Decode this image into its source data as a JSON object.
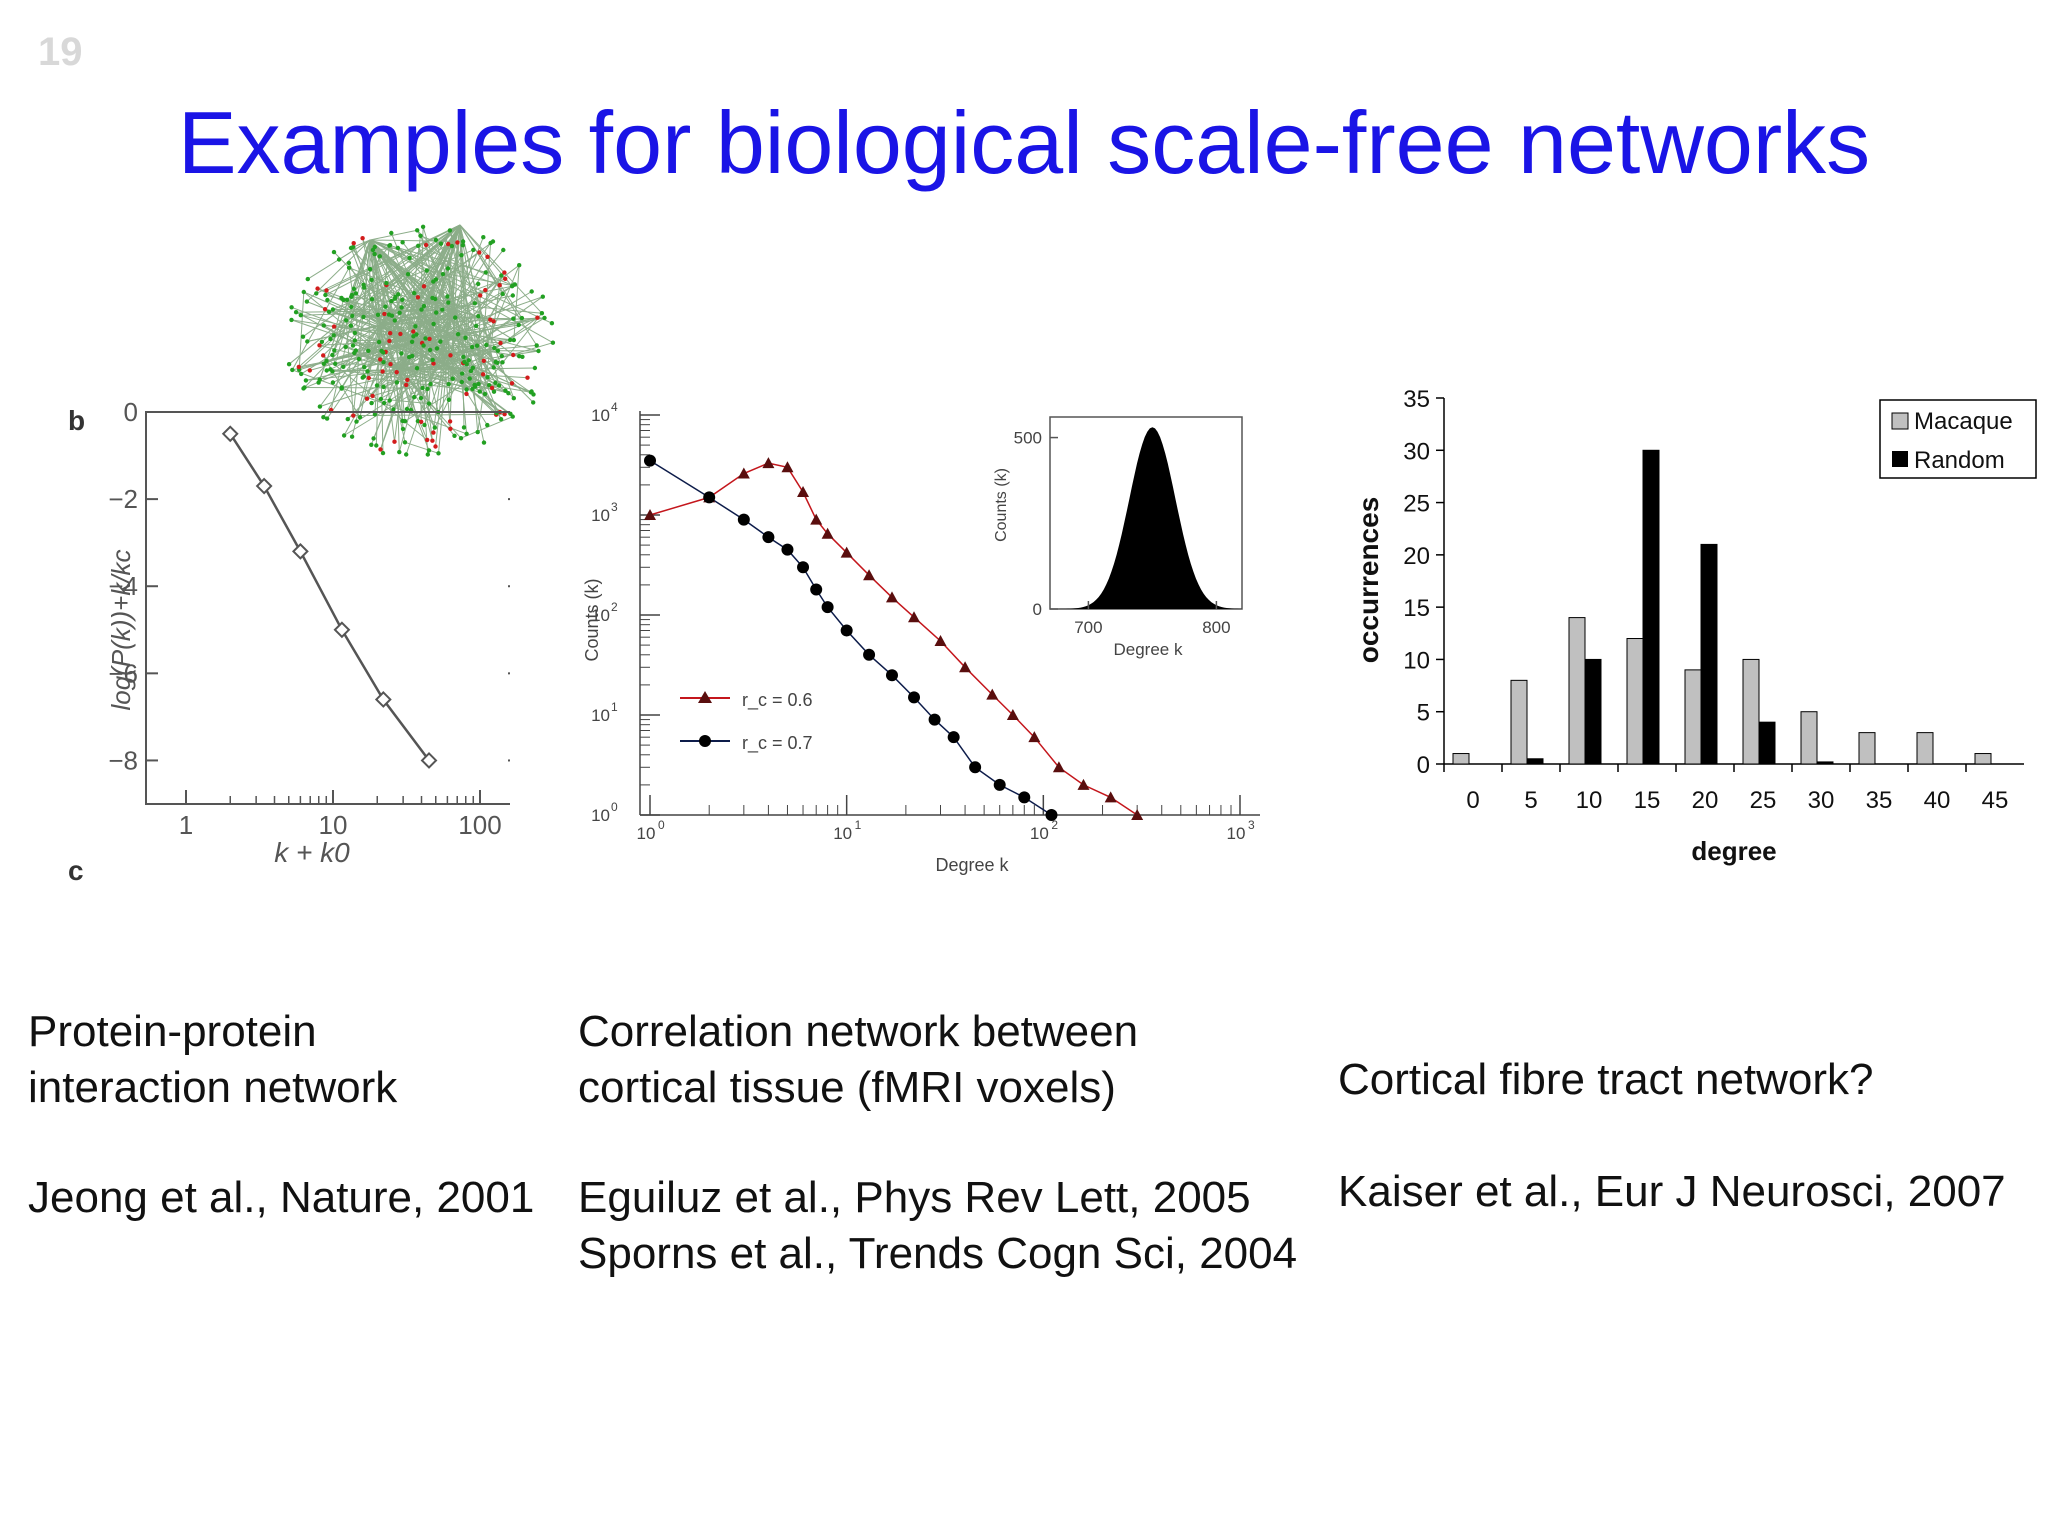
{
  "slide": {
    "number": "19",
    "title": "Examples for biological scale-free networks"
  },
  "colors": {
    "title": "#1a14e6",
    "red_series": "#c4161c",
    "blue_series": "#0d1c4a"
  },
  "captions": {
    "left": {
      "line1": "Protein-protein",
      "line2": "interaction network",
      "ref": "Jeong et al., Nature, 2001"
    },
    "middle": {
      "line1": "Correlation network between",
      "line2": "cortical tissue (fMRI voxels)",
      "ref1": "Eguiluz et al., Phys Rev Lett, 2005",
      "ref2": "Sporns et al., Trends Cogn Sci, 2004"
    },
    "right": {
      "line1": "Cortical fibre tract network?",
      "ref": "Kaiser et al., Eur J Neurosci, 2007"
    }
  },
  "chart_data": [
    {
      "type": "line",
      "panel_labels": [
        "b",
        "c"
      ],
      "xlabel": "k + k0",
      "ylabel": "log(P(k))+k/kc",
      "xscale": "log",
      "x_ticks": [
        "1",
        "10",
        "100"
      ],
      "y_ticks": [
        "0",
        "−2",
        "−4",
        "−6",
        "−8"
      ],
      "xlim": [
        1,
        100
      ],
      "ylim": [
        -9,
        0
      ],
      "points": [
        {
          "x": 2,
          "y": -0.5
        },
        {
          "x": 3.4,
          "y": -1.7
        },
        {
          "x": 6,
          "y": -3.2
        },
        {
          "x": 11.5,
          "y": -5.0
        },
        {
          "x": 22,
          "y": -6.6
        },
        {
          "x": 45,
          "y": -8.0
        }
      ]
    },
    {
      "type": "scatter",
      "xlabel": "Degree k",
      "ylabel": "Counts (k)",
      "xscale": "log",
      "yscale": "log",
      "x_ticks": [
        "10^0",
        "10^1",
        "10^2",
        "10^3"
      ],
      "y_ticks": [
        "10^0",
        "10^1",
        "10^2",
        "10^3",
        "10^4"
      ],
      "legend": [
        "r_c = 0.6",
        "r_c = 0.7"
      ],
      "series": [
        {
          "name": "r_c = 0.6",
          "points": [
            [
              1,
              1000
            ],
            [
              2,
              1500
            ],
            [
              3,
              2600
            ],
            [
              4,
              3300
            ],
            [
              5,
              3000
            ],
            [
              6,
              1700
            ],
            [
              7,
              900
            ],
            [
              8,
              650
            ],
            [
              10,
              420
            ],
            [
              13,
              250
            ],
            [
              17,
              150
            ],
            [
              22,
              95
            ],
            [
              30,
              55
            ],
            [
              40,
              30
            ],
            [
              55,
              16
            ],
            [
              70,
              10
            ],
            [
              90,
              6
            ],
            [
              120,
              3
            ],
            [
              160,
              2
            ],
            [
              220,
              1.5
            ],
            [
              300,
              1
            ]
          ]
        },
        {
          "name": "r_c = 0.7",
          "points": [
            [
              1,
              3500
            ],
            [
              2,
              1500
            ],
            [
              3,
              900
            ],
            [
              4,
              600
            ],
            [
              5,
              450
            ],
            [
              6,
              300
            ],
            [
              7,
              180
            ],
            [
              8,
              120
            ],
            [
              10,
              70
            ],
            [
              13,
              40
            ],
            [
              17,
              25
            ],
            [
              22,
              15
            ],
            [
              28,
              9
            ],
            [
              35,
              6
            ],
            [
              45,
              3
            ],
            [
              60,
              2
            ],
            [
              80,
              1.5
            ],
            [
              110,
              1
            ]
          ]
        }
      ],
      "inset": {
        "type": "area",
        "xlabel": "Degree k",
        "ylabel": "Counts (k)",
        "x_ticks": [
          "700",
          "800"
        ],
        "y_ticks": [
          "0",
          "500"
        ],
        "xlim": [
          670,
          820
        ],
        "ylim": [
          0,
          560
        ],
        "mean": 750,
        "peak": 530,
        "sd": 18
      }
    },
    {
      "type": "bar",
      "xlabel": "degree",
      "ylabel": "occurrences",
      "ylim": [
        0,
        35
      ],
      "y_ticks": [
        "0",
        "5",
        "10",
        "15",
        "20",
        "25",
        "30",
        "35"
      ],
      "categories": [
        "0",
        "5",
        "10",
        "15",
        "20",
        "25",
        "30",
        "35",
        "40",
        "45"
      ],
      "legend_position": "top-right",
      "series": [
        {
          "name": "Macaque",
          "color": "#c0c0c0",
          "values": [
            1,
            8,
            14,
            12,
            9,
            10,
            5,
            3,
            3,
            1
          ]
        },
        {
          "name": "Random",
          "color": "#000000",
          "values": [
            0,
            0.5,
            10,
            30,
            21,
            4,
            0.2,
            0,
            0,
            0
          ]
        }
      ]
    }
  ]
}
